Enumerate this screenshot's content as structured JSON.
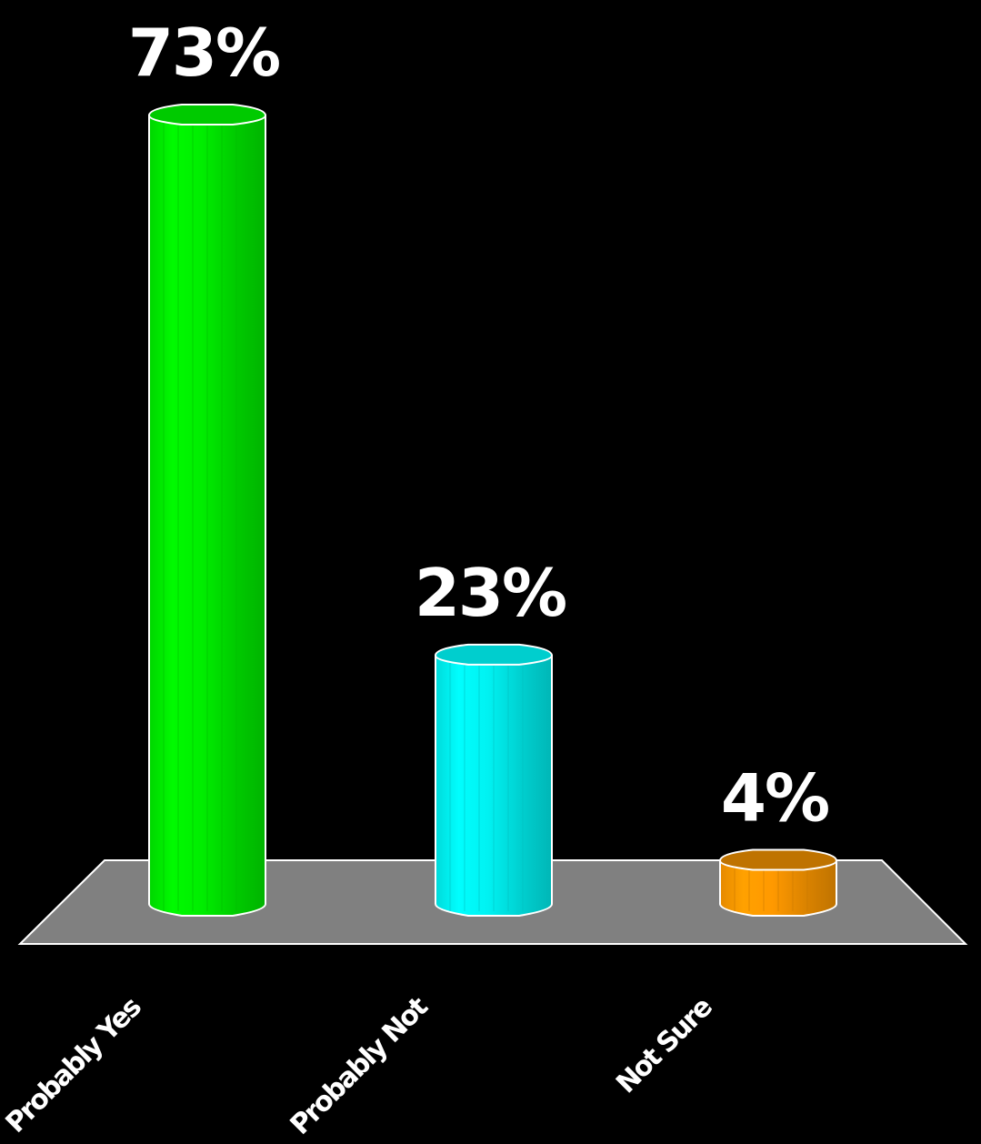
{
  "chart_data": {
    "type": "bar",
    "style": "3d-cylinder",
    "categories": [
      "Probably Yes",
      "Probably Not",
      "Not Sure"
    ],
    "values": [
      73,
      23,
      4
    ],
    "value_labels": [
      "73%",
      "23%",
      "4%"
    ],
    "colors": [
      "#00ee00",
      "#00f2f2",
      "#ff9900"
    ],
    "ylim": [
      0,
      73
    ],
    "grid": false,
    "legend": "none",
    "floor_color": "#808080",
    "background": "#000000"
  }
}
